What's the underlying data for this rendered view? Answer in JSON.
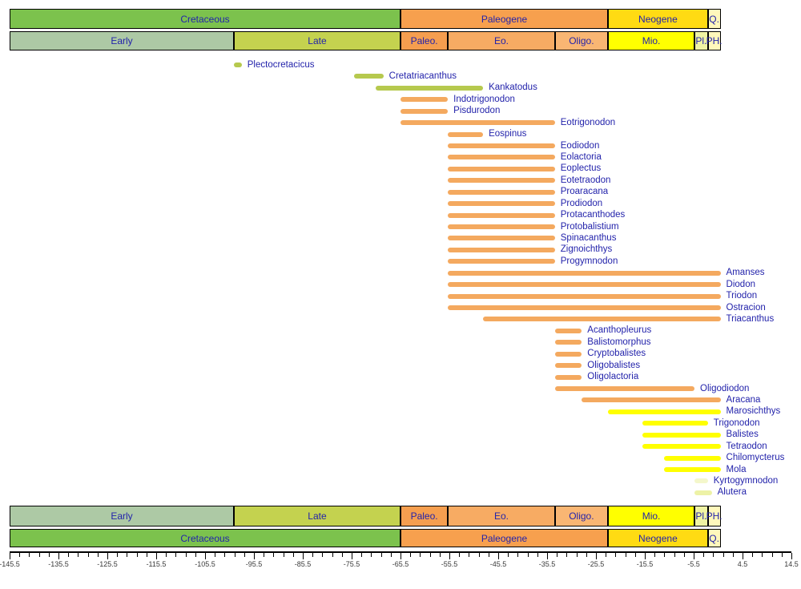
{
  "colors": {
    "label_text": "#2323AB",
    "axis_text": "#3a3a3a",
    "axis_line": "#000000",
    "bars": {
      "green": "#B6C94E",
      "orange": "#F4A95F",
      "yellow": "#FFFF00",
      "pale": "#EDF2A6",
      "pale_light": "#F4F7CB"
    },
    "bands": {
      "cretaceous": "#7CC24D",
      "early": "#ADC9A5",
      "late": "#C4D24F",
      "paleogene": "#F7A04E",
      "paleocene": "#F59E4F",
      "eocene": "#F7AB63",
      "oligocene": "#F9B673",
      "neogene": "#FFDB13",
      "miocene": "#FFFF00",
      "pliocene": "#EFF3A3",
      "pleistocene_holocene": "#FFF8BC",
      "quaternary": "#FFF8BC"
    }
  },
  "chart_data": {
    "type": "bar",
    "subtype": "geologic-time-range-chart",
    "x_unit": "Ma",
    "xlim": [
      -145.5,
      14.5
    ],
    "grid": false,
    "legend": false,
    "periods": [
      {
        "label": "Cretaceous",
        "start": -145.5,
        "end": -65.5,
        "color": "cretaceous"
      },
      {
        "label": "Paleogene",
        "start": -65.5,
        "end": -23.03,
        "color": "paleogene"
      },
      {
        "label": "Neogene",
        "start": -23.03,
        "end": -2.588,
        "color": "neogene"
      },
      {
        "label": "Q.",
        "start": -2.588,
        "end": 0,
        "color": "quaternary"
      }
    ],
    "epochs": [
      {
        "label": "Early",
        "start": -145.5,
        "end": -99.6,
        "color": "early"
      },
      {
        "label": "Late",
        "start": -99.6,
        "end": -65.5,
        "color": "late"
      },
      {
        "label": "Paleo.",
        "start": -65.5,
        "end": -55.8,
        "color": "paleocene"
      },
      {
        "label": "Eo.",
        "start": -55.8,
        "end": -33.9,
        "color": "eocene"
      },
      {
        "label": "Oligo.",
        "start": -33.9,
        "end": -23.03,
        "color": "oligocene"
      },
      {
        "label": "Mio.",
        "start": -23.03,
        "end": -5.332,
        "color": "miocene"
      },
      {
        "label": "Pl.",
        "start": -5.332,
        "end": -2.588,
        "color": "pliocene"
      },
      {
        "label": "PH.",
        "start": -2.588,
        "end": 0,
        "color": "pleistocene_holocene"
      }
    ],
    "taxa": [
      {
        "name": "Plectocretacicus",
        "start": -99.6,
        "end": -98,
        "color": "green"
      },
      {
        "name": "Cretatriacanthus",
        "start": -75,
        "end": -69,
        "color": "green"
      },
      {
        "name": "Kankatodus",
        "start": -70.6,
        "end": -48.6,
        "color": "green"
      },
      {
        "name": "Indotrigonodon",
        "start": -65.5,
        "end": -55.8,
        "color": "orange"
      },
      {
        "name": "Pisdurodon",
        "start": -65.5,
        "end": -55.8,
        "color": "orange"
      },
      {
        "name": "Eotrigonodon",
        "start": -65.5,
        "end": -33.9,
        "color": "orange"
      },
      {
        "name": "Eospinus",
        "start": -55.8,
        "end": -48.6,
        "color": "orange"
      },
      {
        "name": "Eodiodon",
        "start": -55.8,
        "end": -33.9,
        "color": "orange"
      },
      {
        "name": "Eolactoria",
        "start": -55.8,
        "end": -33.9,
        "color": "orange"
      },
      {
        "name": "Eoplectus",
        "start": -55.8,
        "end": -33.9,
        "color": "orange"
      },
      {
        "name": "Eotetraodon",
        "start": -55.8,
        "end": -33.9,
        "color": "orange"
      },
      {
        "name": "Proaracana",
        "start": -55.8,
        "end": -33.9,
        "color": "orange"
      },
      {
        "name": "Prodiodon",
        "start": -55.8,
        "end": -33.9,
        "color": "orange"
      },
      {
        "name": "Protacanthodes",
        "start": -55.8,
        "end": -33.9,
        "color": "orange"
      },
      {
        "name": "Protobalistium",
        "start": -55.8,
        "end": -33.9,
        "color": "orange"
      },
      {
        "name": "Spinacanthus",
        "start": -55.8,
        "end": -33.9,
        "color": "orange"
      },
      {
        "name": "Zignoichthys",
        "start": -55.8,
        "end": -33.9,
        "color": "orange"
      },
      {
        "name": "Progymnodon",
        "start": -55.8,
        "end": -33.9,
        "color": "orange"
      },
      {
        "name": "Amanses",
        "start": -55.8,
        "end": 0,
        "color": "orange"
      },
      {
        "name": "Diodon",
        "start": -55.8,
        "end": 0,
        "color": "orange"
      },
      {
        "name": "Triodon",
        "start": -55.8,
        "end": 0,
        "color": "orange"
      },
      {
        "name": "Ostracion",
        "start": -55.8,
        "end": 0,
        "color": "orange"
      },
      {
        "name": "Triacanthus",
        "start": -48.6,
        "end": 0,
        "color": "orange"
      },
      {
        "name": "Acanthopleurus",
        "start": -33.9,
        "end": -28.4,
        "color": "orange"
      },
      {
        "name": "Balistomorphus",
        "start": -33.9,
        "end": -28.4,
        "color": "orange"
      },
      {
        "name": "Cryptobalistes",
        "start": -33.9,
        "end": -28.4,
        "color": "orange"
      },
      {
        "name": "Oligobalistes",
        "start": -33.9,
        "end": -28.4,
        "color": "orange"
      },
      {
        "name": "Oligolactoria",
        "start": -33.9,
        "end": -28.4,
        "color": "orange"
      },
      {
        "name": "Oligodiodon",
        "start": -33.9,
        "end": -5.332,
        "color": "orange"
      },
      {
        "name": "Aracana",
        "start": -28.4,
        "end": 0,
        "color": "orange"
      },
      {
        "name": "Marosichthys",
        "start": -23.03,
        "end": 0,
        "color": "yellow"
      },
      {
        "name": "Trigonodon",
        "start": -16,
        "end": -2.588,
        "color": "yellow"
      },
      {
        "name": "Balistes",
        "start": -16,
        "end": 0,
        "color": "yellow"
      },
      {
        "name": "Tetraodon",
        "start": -16,
        "end": 0,
        "color": "yellow"
      },
      {
        "name": "Chilomycterus",
        "start": -11.6,
        "end": 0,
        "color": "yellow"
      },
      {
        "name": "Mola",
        "start": -11.6,
        "end": 0,
        "color": "yellow"
      },
      {
        "name": "Kyrtogymnodon",
        "start": -5.332,
        "end": -2.588,
        "color": "pale_light"
      },
      {
        "name": "Alutera",
        "start": -5.332,
        "end": -1.8,
        "color": "pale"
      }
    ],
    "axis": {
      "minor_tick_step": 2,
      "major_tick_values": [
        -145.5,
        -135.5,
        -125.5,
        -115.5,
        -105.5,
        -95.5,
        -85.5,
        -75.5,
        -65.5,
        -55.5,
        -45.5,
        -35.5,
        -25.5,
        -15.5,
        -5.5,
        4.5,
        14.5
      ],
      "major_tick_labels": [
        "-145.5",
        "-135.5",
        "-125.5",
        "-115.5",
        "-105.5",
        "-95.5",
        "-85.5",
        "-75.5",
        "-65.5",
        "-55.5",
        "-45.5",
        "-35.5",
        "-25.5",
        "-15.5",
        "-5.5",
        "4.5",
        "14.5"
      ]
    }
  }
}
